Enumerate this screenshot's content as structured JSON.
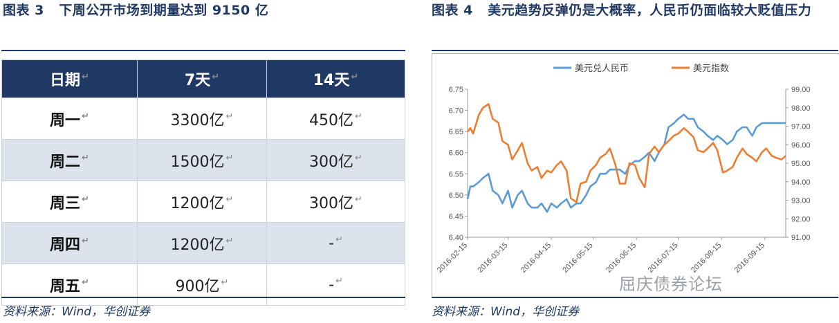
{
  "left": {
    "figure_label": "图表 3",
    "title": "下周公开市场到期量达到 9150 亿",
    "table": {
      "headers": [
        "日期",
        "7天",
        "14天"
      ],
      "rows": [
        {
          "day": "周一",
          "d7": "3300亿",
          "d14": "450亿"
        },
        {
          "day": "周二",
          "d7": "1500亿",
          "d14": "300亿"
        },
        {
          "day": "周三",
          "d7": "1200亿",
          "d14": "300亿"
        },
        {
          "day": "周四",
          "d7": "1200亿",
          "d14": "-"
        },
        {
          "day": "周五",
          "d7": "900亿",
          "d14": "-"
        }
      ]
    },
    "source": "资料来源：Wind，华创证券"
  },
  "right": {
    "figure_label": "图表 4",
    "title": "美元趋势反弹仍是大概率，人民币仍面临较大贬值压力",
    "source": "资料来源：Wind，华创证券",
    "watermark": "屈庆债券论坛"
  },
  "colors": {
    "navy": "#1f3864",
    "usdcny": "#5b9bd5",
    "dxy": "#ed7d31"
  },
  "chart_data": {
    "type": "line",
    "title": "",
    "legend_position": "top-center",
    "x_ticks": [
      "2016-02-15",
      "2016-03-15",
      "2016-04-15",
      "2016-05-15",
      "2016-06-15",
      "2016-07-15",
      "2016-08-15",
      "2016-09-15"
    ],
    "x_range": [
      "2016-02-15",
      "2016-09-30"
    ],
    "y_left": {
      "min": 6.4,
      "max": 6.75,
      "ticks": [
        "6.40",
        "6.45",
        "6.50",
        "6.55",
        "6.60",
        "6.65",
        "6.70",
        "6.75"
      ]
    },
    "y_right": {
      "min": 91.0,
      "max": 99.0,
      "ticks": [
        "91.00",
        "92.00",
        "93.00",
        "94.00",
        "95.00",
        "96.00",
        "97.00",
        "98.00",
        "99.00"
      ]
    },
    "grid": false,
    "series": [
      {
        "name": "美元兑人民币",
        "axis": "left",
        "x": [
          "2016-02-15",
          "2016-02-17",
          "2016-02-19",
          "2016-02-23",
          "2016-02-26",
          "2016-03-01",
          "2016-03-04",
          "2016-03-08",
          "2016-03-11",
          "2016-03-15",
          "2016-03-18",
          "2016-03-22",
          "2016-03-25",
          "2016-03-29",
          "2016-04-01",
          "2016-04-05",
          "2016-04-08",
          "2016-04-12",
          "2016-04-15",
          "2016-04-19",
          "2016-04-22",
          "2016-04-26",
          "2016-04-29",
          "2016-05-03",
          "2016-05-06",
          "2016-05-10",
          "2016-05-13",
          "2016-05-17",
          "2016-05-20",
          "2016-05-24",
          "2016-05-27",
          "2016-05-31",
          "2016-06-03",
          "2016-06-07",
          "2016-06-10",
          "2016-06-14",
          "2016-06-17",
          "2016-06-21",
          "2016-06-24",
          "2016-06-28",
          "2016-07-01",
          "2016-07-05",
          "2016-07-08",
          "2016-07-12",
          "2016-07-15",
          "2016-07-19",
          "2016-07-22",
          "2016-07-26",
          "2016-07-29",
          "2016-08-02",
          "2016-08-05",
          "2016-08-09",
          "2016-08-12",
          "2016-08-16",
          "2016-08-19",
          "2016-08-23",
          "2016-08-26",
          "2016-08-30",
          "2016-09-02",
          "2016-09-06",
          "2016-09-09",
          "2016-09-13",
          "2016-09-16",
          "2016-09-20",
          "2016-09-23",
          "2016-09-27",
          "2016-09-30"
        ],
        "values": [
          6.49,
          6.52,
          6.52,
          6.53,
          6.54,
          6.55,
          6.51,
          6.5,
          6.48,
          6.51,
          6.47,
          6.5,
          6.51,
          6.48,
          6.47,
          6.47,
          6.48,
          6.46,
          6.48,
          6.47,
          6.48,
          6.49,
          6.47,
          6.48,
          6.48,
          6.5,
          6.52,
          6.53,
          6.55,
          6.55,
          6.56,
          6.56,
          6.56,
          6.55,
          6.57,
          6.58,
          6.58,
          6.59,
          6.6,
          6.58,
          6.6,
          6.62,
          6.66,
          6.67,
          6.68,
          6.69,
          6.68,
          6.68,
          6.66,
          6.65,
          6.64,
          6.63,
          6.64,
          6.63,
          6.62,
          6.63,
          6.65,
          6.66,
          6.66,
          6.64,
          6.66,
          6.67,
          6.67,
          6.67,
          6.67,
          6.67,
          6.67
        ]
      },
      {
        "name": "美元指数",
        "axis": "right",
        "x": [
          "2016-02-15",
          "2016-02-17",
          "2016-02-19",
          "2016-02-23",
          "2016-02-26",
          "2016-03-01",
          "2016-03-04",
          "2016-03-08",
          "2016-03-11",
          "2016-03-15",
          "2016-03-18",
          "2016-03-22",
          "2016-03-25",
          "2016-03-29",
          "2016-04-01",
          "2016-04-05",
          "2016-04-08",
          "2016-04-12",
          "2016-04-15",
          "2016-04-19",
          "2016-04-22",
          "2016-04-26",
          "2016-04-29",
          "2016-05-03",
          "2016-05-06",
          "2016-05-10",
          "2016-05-13",
          "2016-05-17",
          "2016-05-20",
          "2016-05-24",
          "2016-05-27",
          "2016-05-31",
          "2016-06-03",
          "2016-06-07",
          "2016-06-10",
          "2016-06-14",
          "2016-06-17",
          "2016-06-21",
          "2016-06-24",
          "2016-06-28",
          "2016-07-01",
          "2016-07-05",
          "2016-07-08",
          "2016-07-12",
          "2016-07-15",
          "2016-07-19",
          "2016-07-22",
          "2016-07-26",
          "2016-07-29",
          "2016-08-02",
          "2016-08-05",
          "2016-08-09",
          "2016-08-12",
          "2016-08-16",
          "2016-08-19",
          "2016-08-23",
          "2016-08-26",
          "2016-08-30",
          "2016-09-02",
          "2016-09-06",
          "2016-09-09",
          "2016-09-13",
          "2016-09-16",
          "2016-09-20",
          "2016-09-23",
          "2016-09-27",
          "2016-09-30"
        ],
        "values": [
          96.7,
          96.9,
          96.6,
          97.6,
          98.0,
          98.2,
          97.4,
          97.2,
          96.2,
          96.0,
          95.2,
          95.7,
          96.1,
          95.0,
          94.6,
          94.8,
          94.2,
          94.6,
          94.5,
          94.9,
          95.1,
          94.6,
          93.1,
          92.9,
          93.9,
          94.0,
          94.6,
          94.9,
          95.3,
          95.5,
          95.8,
          94.9,
          93.9,
          93.9,
          95.0,
          94.9,
          94.2,
          93.7,
          95.5,
          95.9,
          95.6,
          96.0,
          96.2,
          96.5,
          96.6,
          96.9,
          96.7,
          96.4,
          95.7,
          95.6,
          95.8,
          96.1,
          95.7,
          94.5,
          94.6,
          94.8,
          95.3,
          95.8,
          95.5,
          95.3,
          95.1,
          95.6,
          95.8,
          95.4,
          95.3,
          95.2,
          95.4
        ]
      }
    ]
  }
}
